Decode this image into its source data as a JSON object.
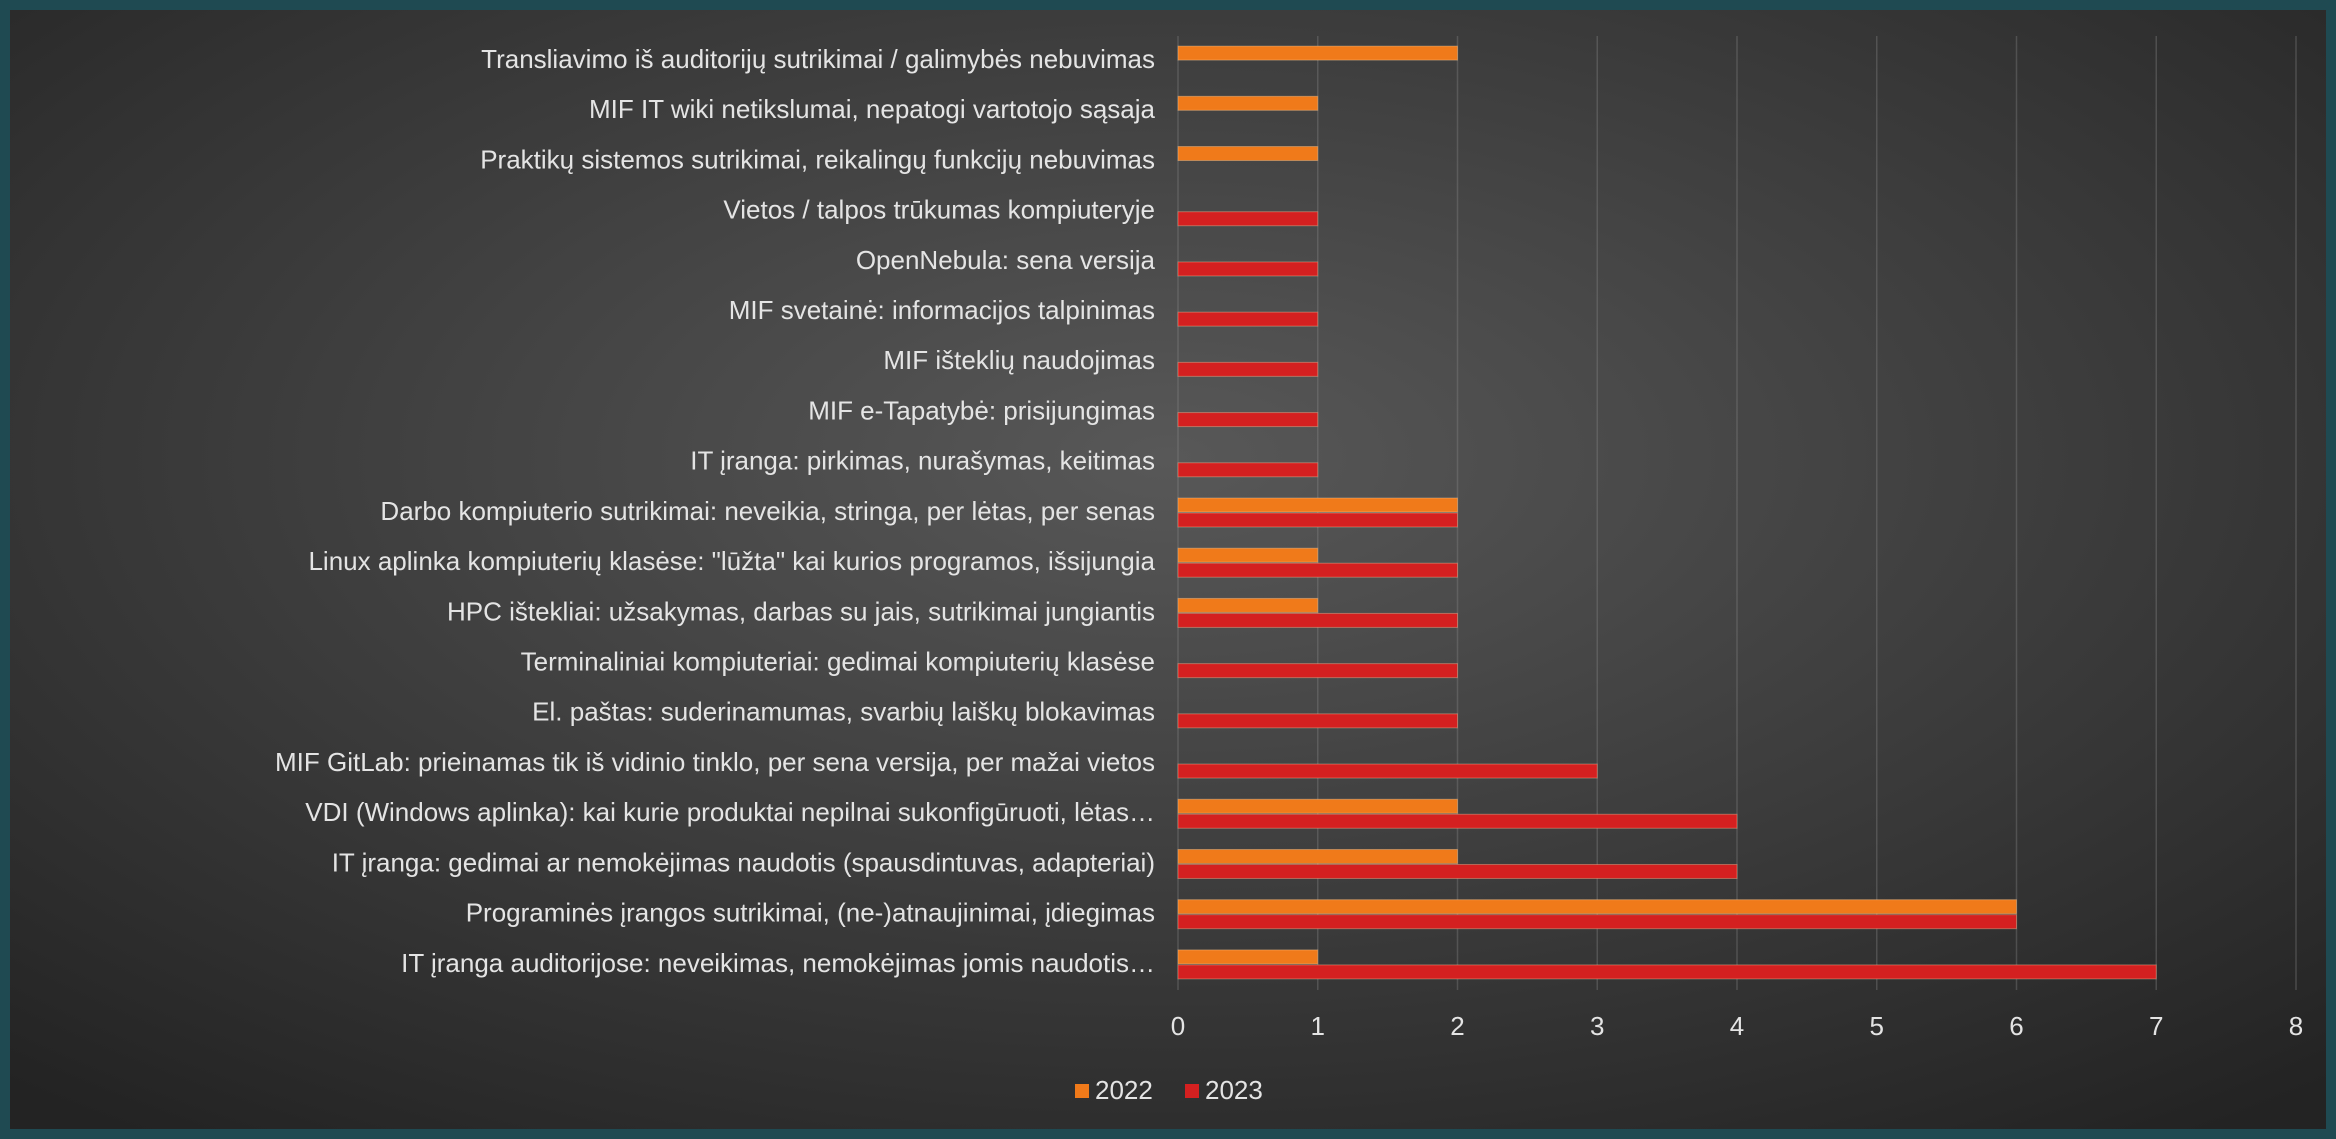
{
  "chart_data": {
    "type": "barh",
    "categories": [
      "Transliavimo iš auditorijų sutrikimai / galimybės nebuvimas",
      "MIF IT wiki netikslumai, nepatogi vartotojo sąsaja",
      "Praktikų sistemos sutrikimai, reikalingų funkcijų nebuvimas",
      "Vietos / talpos trūkumas kompiuteryje",
      "OpenNebula: sena versija",
      "MIF svetainė: informacijos talpinimas",
      "MIF išteklių naudojimas",
      "MIF e-Tapatybė: prisijungimas",
      "IT įranga: pirkimas, nurašymas, keitimas",
      "Darbo kompiuterio sutrikimai: neveikia, stringa, per lėtas, per senas",
      "Linux aplinka kompiuterių klasėse: \"lūžta\" kai kurios programos, išsijungia",
      "HPC ištekliai: užsakymas, darbas su jais, sutrikimai jungiantis",
      "Terminaliniai kompiuteriai: gedimai kompiuterių klasėse",
      "El. paštas: suderinamumas, svarbių laiškų blokavimas",
      "MIF GitLab: prieinamas tik iš vidinio tinklo, per sena versija, per mažai vietos",
      "VDI (Windows aplinka): kai kurie produktai nepilnai sukonfigūruoti, lėtas…",
      "IT įranga: gedimai ar nemokėjimas naudotis (spausdintuvas, adapteriai)",
      "Programinės įrangos sutrikimai, (ne-)atnaujinimai, įdiegimas",
      "IT įranga auditorijose: neveikimas, nemokėjimas jomis naudotis…"
    ],
    "series": [
      {
        "name": "2022",
        "color": "#f07a1a",
        "values": [
          2,
          1,
          1,
          null,
          null,
          null,
          null,
          null,
          null,
          2,
          1,
          1,
          null,
          null,
          null,
          2,
          2,
          6,
          1
        ]
      },
      {
        "name": "2023",
        "color": "#d42020",
        "values": [
          null,
          null,
          null,
          1,
          1,
          1,
          1,
          1,
          1,
          2,
          2,
          2,
          2,
          2,
          3,
          4,
          4,
          6,
          7
        ]
      }
    ],
    "xlim": [
      0,
      8
    ],
    "xticks": [
      0,
      1,
      2,
      3,
      4,
      5,
      6,
      7,
      8
    ],
    "grid": true,
    "legend": "bottom"
  }
}
